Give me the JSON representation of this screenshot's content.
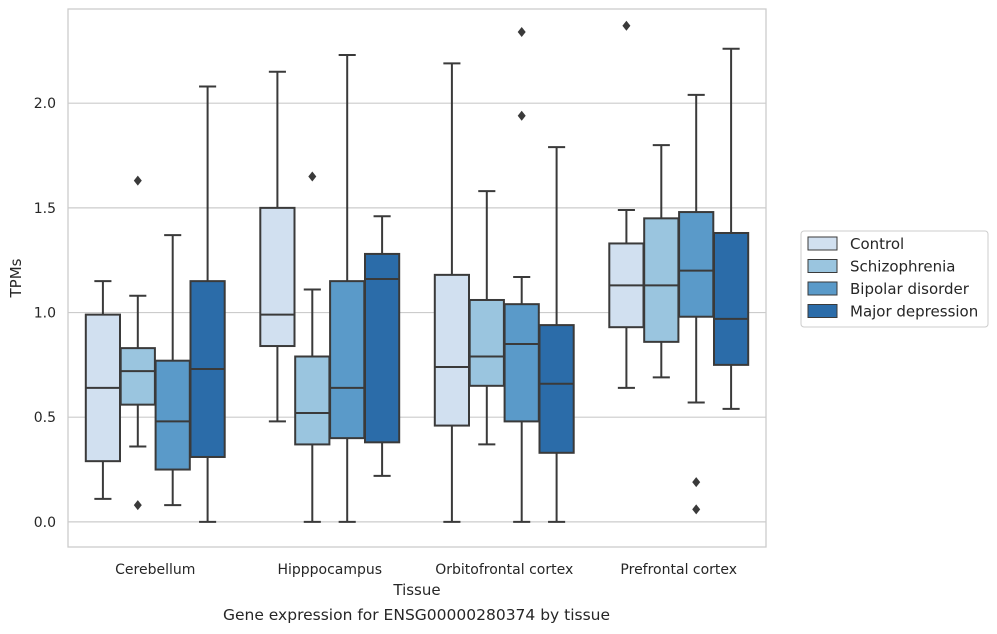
{
  "caption": "Gene expression for ENSG00000280374 by tissue",
  "chart_data": {
    "type": "box",
    "xlabel": "Tissue",
    "ylabel": "TPMs",
    "ylim": [
      -0.12,
      2.45
    ],
    "yticks": [
      0.0,
      0.5,
      1.0,
      1.5,
      2.0
    ],
    "ytick_labels": [
      "0.0",
      "0.5",
      "1.0",
      "1.5",
      "2.0"
    ],
    "grid": "horizontal",
    "legend_position": "right",
    "categories": [
      "Cerebellum",
      "Hipppocampus",
      "Orbitofrontal cortex",
      "Prefrontal cortex"
    ],
    "series": [
      {
        "name": "Control",
        "color": "#d1e0f0",
        "boxes": [
          {
            "whislo": 0.11,
            "q1": 0.29,
            "med": 0.64,
            "q3": 0.99,
            "whishi": 1.15,
            "fliers": []
          },
          {
            "whislo": 0.48,
            "q1": 0.84,
            "med": 0.99,
            "q3": 1.5,
            "whishi": 2.15,
            "fliers": []
          },
          {
            "whislo": 0.0,
            "q1": 0.46,
            "med": 0.74,
            "q3": 1.18,
            "whishi": 2.19,
            "fliers": []
          },
          {
            "whislo": 0.64,
            "q1": 0.93,
            "med": 1.13,
            "q3": 1.33,
            "whishi": 1.49,
            "fliers": [
              2.37
            ]
          }
        ]
      },
      {
        "name": "Schizophrenia",
        "color": "#9ac5df",
        "boxes": [
          {
            "whislo": 0.36,
            "q1": 0.56,
            "med": 0.72,
            "q3": 0.83,
            "whishi": 1.08,
            "fliers": [
              1.63,
              0.08
            ]
          },
          {
            "whislo": 0.0,
            "q1": 0.37,
            "med": 0.52,
            "q3": 0.79,
            "whishi": 1.11,
            "fliers": [
              1.65
            ]
          },
          {
            "whislo": 0.37,
            "q1": 0.65,
            "med": 0.79,
            "q3": 1.06,
            "whishi": 1.58,
            "fliers": []
          },
          {
            "whislo": 0.69,
            "q1": 0.86,
            "med": 1.13,
            "q3": 1.45,
            "whishi": 1.8,
            "fliers": []
          }
        ]
      },
      {
        "name": "Bipolar disorder",
        "color": "#5a9ac9",
        "boxes": [
          {
            "whislo": 0.08,
            "q1": 0.25,
            "med": 0.48,
            "q3": 0.77,
            "whishi": 1.37,
            "fliers": []
          },
          {
            "whislo": 0.0,
            "q1": 0.4,
            "med": 0.64,
            "q3": 1.15,
            "whishi": 2.23,
            "fliers": []
          },
          {
            "whislo": 0.0,
            "q1": 0.48,
            "med": 0.85,
            "q3": 1.04,
            "whishi": 1.17,
            "fliers": [
              2.34,
              1.94
            ]
          },
          {
            "whislo": 0.57,
            "q1": 0.98,
            "med": 1.2,
            "q3": 1.48,
            "whishi": 2.04,
            "fliers": [
              0.19,
              0.06
            ]
          }
        ]
      },
      {
        "name": "Major depression",
        "color": "#2b6ca9",
        "boxes": [
          {
            "whislo": 0.0,
            "q1": 0.31,
            "med": 0.73,
            "q3": 1.15,
            "whishi": 2.08,
            "fliers": []
          },
          {
            "whislo": 0.22,
            "q1": 0.38,
            "med": 1.16,
            "q3": 1.28,
            "whishi": 1.46,
            "fliers": []
          },
          {
            "whislo": 0.0,
            "q1": 0.33,
            "med": 0.66,
            "q3": 0.94,
            "whishi": 1.79,
            "fliers": []
          },
          {
            "whislo": 0.54,
            "q1": 0.75,
            "med": 0.97,
            "q3": 1.38,
            "whishi": 2.26,
            "fliers": []
          }
        ]
      }
    ]
  }
}
